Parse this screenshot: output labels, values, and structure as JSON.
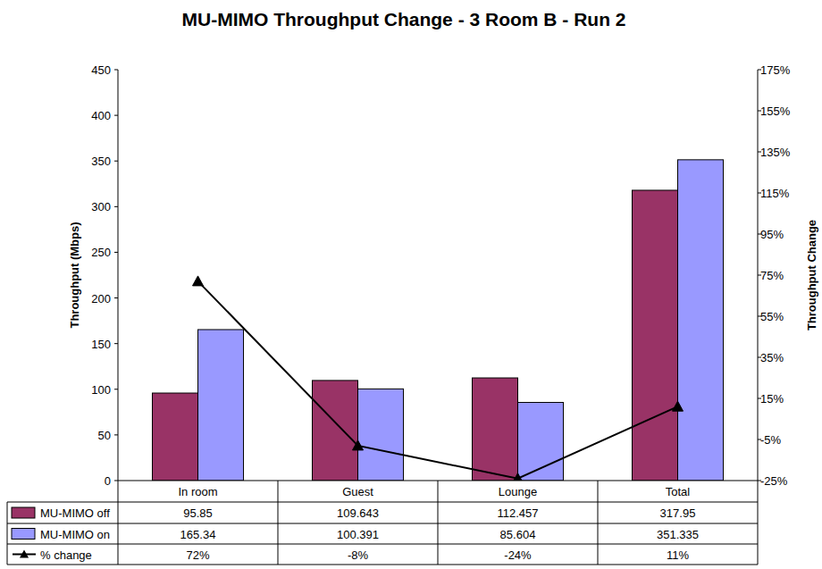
{
  "chart_data": {
    "type": "bar",
    "title": "MU-MIMO Throughput Change - 3 Room B - Run 2",
    "y_label": "Throughput (Mbps)",
    "y2_label": "Throughput Change",
    "categories": [
      "In room",
      "Guest",
      "Lounge",
      "Total"
    ],
    "series": [
      {
        "name": "MU-MIMO off",
        "color": "#993366",
        "values": [
          95.85,
          109.643,
          112.457,
          317.95
        ]
      },
      {
        "name": "MU-MIMO on",
        "color": "#9999ff",
        "values": [
          165.34,
          100.391,
          85.604,
          351.335
        ]
      },
      {
        "name": "% change",
        "type": "line",
        "axis": "y2",
        "color": "#000000",
        "marker": "triangle",
        "line_style": "solid",
        "values": [
          72,
          -8,
          -24,
          11
        ],
        "value_labels": [
          "72%",
          "-8%",
          "-24%",
          "11%"
        ]
      }
    ],
    "ylim": [
      0,
      450
    ],
    "yticks": [
      0,
      50,
      100,
      150,
      200,
      250,
      300,
      350,
      400,
      450
    ],
    "y2lim": [
      -25,
      175
    ],
    "y2ticks": [
      {
        "value": -25,
        "label": "-25%"
      },
      {
        "value": -5,
        "label": "-5%"
      },
      {
        "value": 15,
        "label": "15%"
      },
      {
        "value": 35,
        "label": "35%"
      },
      {
        "value": 55,
        "label": "55%"
      },
      {
        "value": 75,
        "label": "75%"
      },
      {
        "value": 95,
        "label": "95%"
      },
      {
        "value": 115,
        "label": "115%"
      },
      {
        "value": 135,
        "label": "135%"
      },
      {
        "value": 155,
        "label": "155%"
      },
      {
        "value": 175,
        "label": "175%"
      }
    ],
    "grid": false
  }
}
